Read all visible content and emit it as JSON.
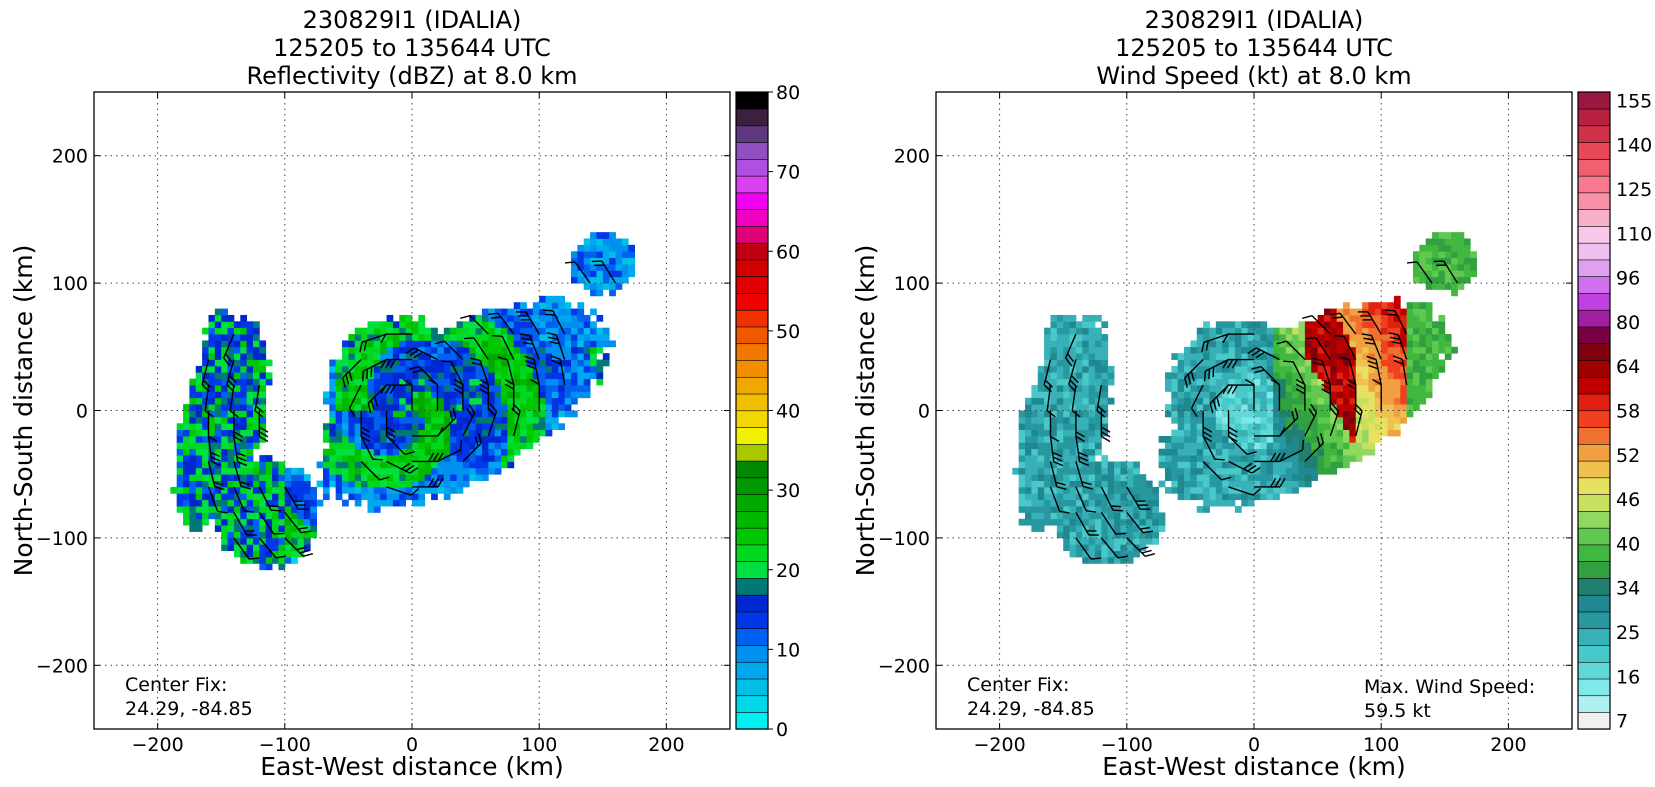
{
  "chart_data": [
    {
      "type": "heatmap",
      "title_lines": [
        "230829I1 (IDALIA)",
        "125205 to 135644 UTC",
        "Reflectivity (dBZ) at 8.0 km"
      ],
      "xlabel": "East-West distance (km)",
      "ylabel": "North-South distance (km)",
      "xlim": [
        -250,
        250
      ],
      "ylim": [
        -250,
        250
      ],
      "xticks": [
        -200,
        -100,
        0,
        100,
        200
      ],
      "yticks": [
        -200,
        -100,
        0,
        100,
        200
      ],
      "grid": true,
      "annotations": [
        "Center Fix:",
        "24.29, -84.85"
      ],
      "colorbar": {
        "min": 0,
        "max": 80,
        "tick_labels": [
          "0",
          "10",
          "20",
          "30",
          "40",
          "50",
          "60",
          "70",
          "80"
        ],
        "tick_values": [
          0,
          10,
          20,
          30,
          40,
          50,
          60,
          70,
          80
        ],
        "colors": [
          "#00f0f0",
          "#00d8ea",
          "#00c0e8",
          "#00a8ee",
          "#0090f0",
          "#0060f0",
          "#0038e8",
          "#0028d0",
          "#007878",
          "#00e040",
          "#00d820",
          "#00c800",
          "#00b800",
          "#00a800",
          "#009800",
          "#008800",
          "#a8c800",
          "#f0f000",
          "#f0d800",
          "#f0c000",
          "#f0a800",
          "#f09000",
          "#f07800",
          "#f05800",
          "#f03000",
          "#f00000",
          "#e00000",
          "#d00000",
          "#c00010",
          "#e00078",
          "#f000c0",
          "#f000f0",
          "#d840f0",
          "#b050e0",
          "#9050c0",
          "#603880",
          "#3c2040",
          "#000000"
        ]
      },
      "field": "reflectivity"
    },
    {
      "type": "heatmap",
      "title_lines": [
        "230829I1 (IDALIA)",
        "125205 to 135644 UTC",
        "Wind Speed (kt) at 8.0 km"
      ],
      "xlabel": "East-West distance (km)",
      "ylabel": "North-South distance (km)",
      "xlim": [
        -250,
        250
      ],
      "ylim": [
        -250,
        250
      ],
      "xticks": [
        -200,
        -100,
        0,
        100,
        200
      ],
      "yticks": [
        -200,
        -100,
        0,
        100,
        200
      ],
      "grid": true,
      "annotations": [
        "Center Fix:",
        "24.29, -84.85"
      ],
      "max_wind_label": "Max. Wind Speed:",
      "max_wind_value": "59.5 kt",
      "colorbar": {
        "tick_labels": [
          "7",
          "16",
          "25",
          "34",
          "40",
          "46",
          "52",
          "58",
          "64",
          "80",
          "96",
          "110",
          "125",
          "140",
          "155"
        ],
        "colors": [
          "#f0f0f0",
          "#b0f0f0",
          "#80e8e8",
          "#60d8d8",
          "#48c8c8",
          "#38b0b8",
          "#2898a0",
          "#208890",
          "#208070",
          "#30a040",
          "#40b840",
          "#60c850",
          "#90d860",
          "#c8e060",
          "#e8e060",
          "#f0c050",
          "#f0a040",
          "#f07030",
          "#f04020",
          "#e02010",
          "#c00000",
          "#a00000",
          "#800010",
          "#780040",
          "#a020a0",
          "#c040e0",
          "#d070f0",
          "#e0a0f0",
          "#f0c0f0",
          "#f8c8e8",
          "#f8b0c8",
          "#f890a8",
          "#f87890",
          "#f06070",
          "#e84858",
          "#d03048",
          "#b82040",
          "#981840"
        ]
      },
      "field": "windspeed"
    }
  ]
}
